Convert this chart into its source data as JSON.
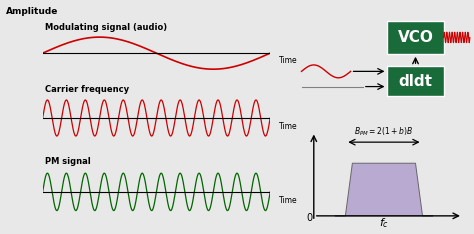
{
  "bg_color": "#e8e8e8",
  "left_bg": "#ffffff",
  "right_top_bg": "#d0d0d0",
  "right_bot_bg": "#d8d8d8",
  "amplitude_label": "Amplitude",
  "modulating_label": "Modulating signal (audio)",
  "carrier_label": "Carrier frequency",
  "pm_label": "PM signal",
  "time_label": "Time",
  "vco_label": "VCO",
  "dldt_label": "dldt",
  "zero_label": "0",
  "fc_label": "fc",
  "bpm_formula": "B_PM= 2(1 + b)B",
  "modulating_color": "#cc0000",
  "carrier_color": "#cc0000",
  "pm_color": "#006600",
  "vco_out_color": "#cc0000",
  "input_signal_color": "#cc0000",
  "box_color": "#1a6b3a",
  "spectrum_fill": "#b0a0cc",
  "modulating_freq": 1.0,
  "carrier_freq": 12,
  "pm_freq": 12
}
